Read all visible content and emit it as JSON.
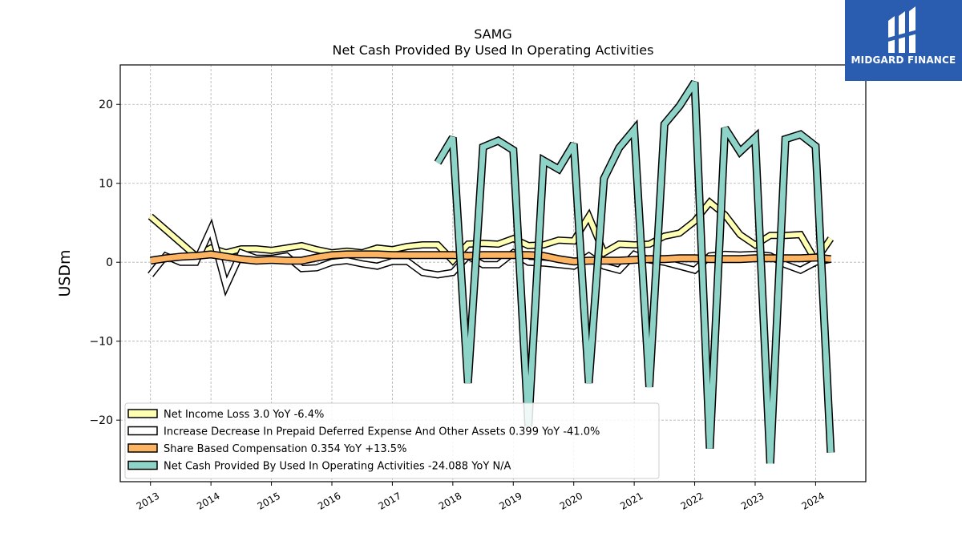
{
  "chart_data": {
    "type": "line",
    "title": "SAMG",
    "subtitle": "Net Cash Provided By Used In Operating Activities",
    "ylabel": "USDm",
    "xlabel": "",
    "xlim": [
      2012.5,
      2024.83
    ],
    "ylim": [
      -27.8,
      25
    ],
    "yticks": [
      -20,
      -10,
      0,
      10,
      20
    ],
    "ytick_labels": [
      "−20",
      "−10",
      "0",
      "10",
      "20"
    ],
    "xticks": [
      2013,
      2014,
      2015,
      2016,
      2017,
      2018,
      2019,
      2020,
      2021,
      2022,
      2023,
      2024
    ],
    "xtick_labels": [
      "2013",
      "2014",
      "2015",
      "2016",
      "2017",
      "2018",
      "2019",
      "2020",
      "2021",
      "2022",
      "2023",
      "2024"
    ],
    "grid": true,
    "legend_position": "lower-left",
    "series": [
      {
        "name": "Net Income Loss",
        "legend_label": "Net Income Loss  3.0 YoY -6.4%",
        "color": "#ffffb3",
        "x": [
          2013.0,
          2013.75,
          2014.0,
          2014.25,
          2014.5,
          2014.75,
          2015.0,
          2015.25,
          2015.5,
          2015.75,
          2016.0,
          2016.25,
          2016.5,
          2016.75,
          2017.0,
          2017.25,
          2017.5,
          2017.75,
          2018.0,
          2018.25,
          2018.5,
          2018.75,
          2019.0,
          2019.25,
          2019.5,
          2019.75,
          2020.0,
          2020.25,
          2020.5,
          2020.75,
          2021.0,
          2021.25,
          2021.5,
          2021.75,
          2022.0,
          2022.25,
          2022.5,
          2022.75,
          2023.0,
          2023.25,
          2023.5,
          2023.75,
          2024.0,
          2024.25
        ],
        "values": [
          5.8,
          0.8,
          1.8,
          1.2,
          1.7,
          1.7,
          1.5,
          1.8,
          2.1,
          1.6,
          1.2,
          1.4,
          1.2,
          1.8,
          1.6,
          2.0,
          2.2,
          2.2,
          0.2,
          2.3,
          2.4,
          2.3,
          3.0,
          2.1,
          2.2,
          2.8,
          2.7,
          5.8,
          1.2,
          2.3,
          2.2,
          2.3,
          3.3,
          3.7,
          5.2,
          7.6,
          6.0,
          3.5,
          2.2,
          3.4,
          3.4,
          3.5,
          0.2,
          3.0
        ]
      },
      {
        "name": "Increase Decrease In Prepaid Deferred Expense And Other Assets",
        "legend_label": "Increase Decrease In Prepaid Deferred Expense And Other Assets  0.399 YoY -41.0%",
        "color": "#ffffff",
        "x": [
          2013.0,
          2013.25,
          2013.5,
          2013.75,
          2014.0,
          2014.25,
          2014.5,
          2014.75,
          2015.0,
          2015.25,
          2015.5,
          2015.75,
          2016.0,
          2016.25,
          2016.5,
          2016.75,
          2017.0,
          2017.25,
          2017.5,
          2017.75,
          2018.0,
          2018.25,
          2018.5,
          2018.75,
          2019.0,
          2019.25,
          2019.5,
          2019.75,
          2020.0,
          2020.25,
          2020.5,
          2020.75,
          2021.0,
          2021.25,
          2021.5,
          2021.75,
          2022.0,
          2022.25,
          2022.5,
          2022.75,
          2023.0,
          2023.25,
          2023.5,
          2023.75,
          2024.0,
          2024.25
        ],
        "values": [
          -1.6,
          0.8,
          0.0,
          0.0,
          4.2,
          -3.0,
          1.2,
          0.5,
          0.5,
          0.8,
          -0.8,
          -0.7,
          0.0,
          0.2,
          -0.2,
          -0.5,
          0.1,
          0.1,
          -1.3,
          -1.6,
          -1.3,
          0.8,
          -0.3,
          -0.3,
          1.2,
          0.0,
          -0.1,
          -0.3,
          -0.5,
          0.8,
          -0.5,
          -1.0,
          1.0,
          0.3,
          0.0,
          -0.5,
          -1.0,
          0.8,
          1.0,
          0.9,
          1.0,
          0.8,
          -0.3,
          -1.0,
          0.0,
          0.4
        ]
      },
      {
        "name": "Share Based Compensation",
        "legend_label": "Share Based Compensation  0.354 YoY +13.5%",
        "color": "#fdb462",
        "x": [
          2013.0,
          2013.25,
          2013.5,
          2013.75,
          2014.0,
          2014.25,
          2014.5,
          2014.75,
          2015.0,
          2015.25,
          2015.5,
          2015.75,
          2016.0,
          2016.25,
          2016.5,
          2016.75,
          2017.0,
          2017.25,
          2017.5,
          2017.75,
          2018.0,
          2018.25,
          2018.5,
          2018.75,
          2019.0,
          2019.25,
          2019.5,
          2019.75,
          2020.0,
          2020.25,
          2020.5,
          2020.75,
          2021.0,
          2021.25,
          2021.5,
          2021.75,
          2022.0,
          2022.25,
          2022.5,
          2022.75,
          2023.0,
          2023.25,
          2023.5,
          2023.75,
          2024.0,
          2024.25
        ],
        "values": [
          0.2,
          0.5,
          0.7,
          0.8,
          1.0,
          0.7,
          0.4,
          0.2,
          0.3,
          0.2,
          0.2,
          0.6,
          0.9,
          1.0,
          1.0,
          1.0,
          0.9,
          0.9,
          0.9,
          0.9,
          0.9,
          0.8,
          0.9,
          0.9,
          0.9,
          0.9,
          0.8,
          0.4,
          0.1,
          0.2,
          0.2,
          0.2,
          0.3,
          0.4,
          0.4,
          0.5,
          0.5,
          0.4,
          0.4,
          0.4,
          0.5,
          0.5,
          0.5,
          0.5,
          0.6,
          0.4
        ]
      },
      {
        "name": "Net Cash Provided By Used In Operating Activities",
        "legend_label": "Net Cash Provided By Used In Operating Activities  -24.088 YoY N/A",
        "color": "#8dd3c7",
        "x": [
          2017.75,
          2018.0,
          2018.25,
          2018.5,
          2018.75,
          2019.0,
          2019.25,
          2019.5,
          2019.75,
          2020.0,
          2020.25,
          2020.5,
          2020.75,
          2021.0,
          2021.25,
          2021.5,
          2021.75,
          2022.0,
          2022.25,
          2022.5,
          2022.75,
          2023.0,
          2023.25,
          2023.5,
          2023.75,
          2024.0,
          2024.25
        ],
        "values": [
          12.6,
          15.8,
          -15.3,
          14.6,
          15.4,
          14.2,
          -20.8,
          12.9,
          11.8,
          15.0,
          -15.3,
          10.6,
          14.5,
          16.8,
          -15.8,
          17.5,
          19.8,
          22.8,
          -23.6,
          17.0,
          14.0,
          15.8,
          -25.5,
          15.6,
          16.2,
          14.7,
          -24.1
        ]
      }
    ]
  },
  "logo": {
    "text": "MIDGARD FINANCE"
  }
}
